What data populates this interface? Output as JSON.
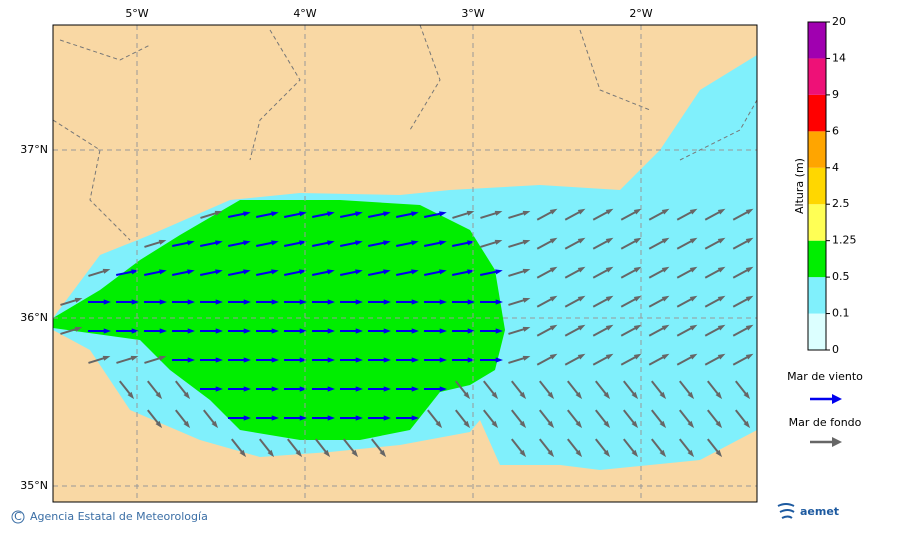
{
  "map": {
    "lon_labels": [
      "5°W",
      "4°W",
      "3°W",
      "2°W"
    ],
    "lat_labels": [
      "37°N",
      "36°N",
      "35°N"
    ],
    "colorbar": {
      "title": "Altura (m)",
      "levels": [
        0,
        0.1,
        0.5,
        1.25,
        2.5,
        4,
        6,
        9,
        14,
        20
      ],
      "colors": [
        "#dcffff",
        "#80f0fc",
        "#00ee00",
        "#ffff55",
        "#ffd700",
        "#ffa500",
        "#ff0000",
        "#ee1177",
        "#a000b0"
      ]
    },
    "legend": {
      "wind_sea": "Mar de viento",
      "swell": "Mar de fondo"
    }
  },
  "footer": {
    "agency": "Agencia Estatal de Meteorología",
    "logo": "aemet"
  }
}
